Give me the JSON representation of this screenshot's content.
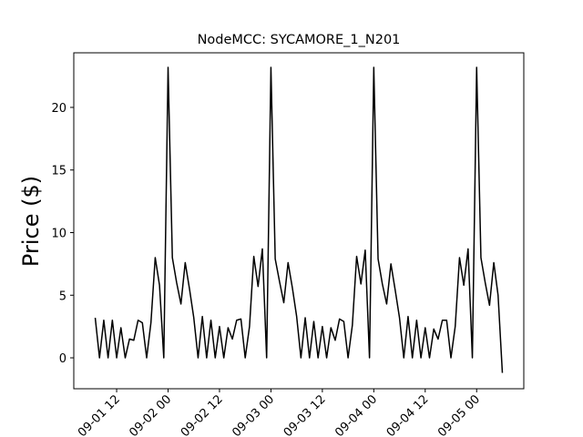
{
  "chart_data": {
    "type": "line",
    "title": "NodeMCC: SYCAMORE_1_N201",
    "ylabel": "Price ($)",
    "color": "#000000",
    "x": [
      "09-01 07",
      "09-01 08",
      "09-01 09",
      "09-01 10",
      "09-01 11",
      "09-01 12",
      "09-01 13",
      "09-01 14",
      "09-01 15",
      "09-01 16",
      "09-01 17",
      "09-01 18",
      "09-01 19",
      "09-01 20",
      "09-01 21",
      "09-01 22",
      "09-01 23",
      "09-02 00",
      "09-02 01",
      "09-02 02",
      "09-02 03",
      "09-02 04",
      "09-02 05",
      "09-02 06",
      "09-02 07",
      "09-02 08",
      "09-02 09",
      "09-02 10",
      "09-02 11",
      "09-02 12",
      "09-02 13",
      "09-02 14",
      "09-02 15",
      "09-02 16",
      "09-02 17",
      "09-02 18",
      "09-02 19",
      "09-02 20",
      "09-02 21",
      "09-02 22",
      "09-02 23",
      "09-03 00",
      "09-03 01",
      "09-03 02",
      "09-03 03",
      "09-03 04",
      "09-03 05",
      "09-03 06",
      "09-03 07",
      "09-03 08",
      "09-03 09",
      "09-03 10",
      "09-03 11",
      "09-03 12",
      "09-03 13",
      "09-03 14",
      "09-03 15",
      "09-03 16",
      "09-03 17",
      "09-03 18",
      "09-03 19",
      "09-03 20",
      "09-03 21",
      "09-03 22",
      "09-03 23",
      "09-04 00",
      "09-04 01",
      "09-04 02",
      "09-04 03",
      "09-04 04",
      "09-04 05",
      "09-04 06",
      "09-04 07",
      "09-04 08",
      "09-04 09",
      "09-04 10",
      "09-04 11",
      "09-04 12",
      "09-04 13",
      "09-04 14",
      "09-04 15",
      "09-04 16",
      "09-04 17",
      "09-04 18",
      "09-04 19",
      "09-04 20",
      "09-04 21",
      "09-04 22",
      "09-04 23",
      "09-05 00",
      "09-05 01",
      "09-05 02",
      "09-05 03",
      "09-05 04",
      "09-05 05",
      "09-05 06"
    ],
    "values": [
      3.2,
      0,
      3.0,
      0,
      3.0,
      0,
      2.4,
      0,
      1.5,
      1.4,
      3.0,
      2.8,
      0,
      2.8,
      8.0,
      5.8,
      0,
      23.2,
      8.0,
      6.0,
      4.3,
      7.6,
      5.5,
      3.2,
      0,
      3.3,
      0,
      3.0,
      0,
      2.5,
      0,
      2.4,
      1.5,
      3.0,
      3.1,
      0,
      2.5,
      8.1,
      5.7,
      8.7,
      0,
      23.2,
      7.9,
      6.1,
      4.4,
      7.6,
      5.6,
      3.3,
      0,
      3.2,
      0,
      2.9,
      0,
      2.5,
      0,
      2.4,
      1.4,
      3.1,
      2.9,
      0,
      2.6,
      8.1,
      5.9,
      8.6,
      0,
      23.2,
      7.9,
      5.9,
      4.3,
      7.5,
      5.4,
      3.2,
      0,
      3.3,
      0,
      3.0,
      0,
      2.4,
      0,
      2.3,
      1.5,
      3.0,
      3.0,
      0,
      2.5,
      8.0,
      5.8,
      8.7,
      0,
      23.2,
      8.0,
      6.0,
      4.2,
      7.6,
      5.0,
      -1.2
    ],
    "xlim": [
      "09-01 02",
      "09-05 11"
    ],
    "xticks": [
      "09-01 12",
      "09-02 00",
      "09-02 12",
      "09-03 00",
      "09-03 12",
      "09-04 00",
      "09-04 12",
      "09-05 00"
    ],
    "ylim": [
      -2.47,
      24.36
    ],
    "yticks": [
      0,
      5,
      10,
      15,
      20
    ]
  }
}
